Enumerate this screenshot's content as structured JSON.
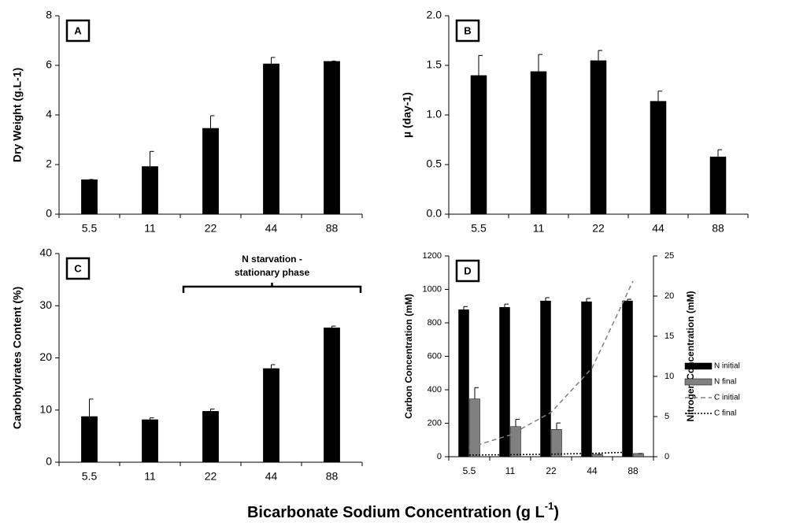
{
  "chart_data": [
    {
      "type": "bar",
      "panel": "A",
      "ylabel": "Dry Weight (g.L-1)",
      "categories": [
        "5.5",
        "11",
        "22",
        "44",
        "88"
      ],
      "values": [
        1.4,
        1.93,
        3.47,
        6.07,
        6.17
      ],
      "errors": [
        0,
        0.6,
        0.5,
        0.25,
        0
      ],
      "color": "#000000",
      "ylim": [
        0,
        8
      ],
      "yticks": [
        0,
        2,
        4,
        6,
        8
      ]
    },
    {
      "type": "bar",
      "panel": "B",
      "ylabel": "µ (day-1)",
      "categories": [
        "5.5",
        "11",
        "22",
        "44",
        "88"
      ],
      "values": [
        1.4,
        1.44,
        1.55,
        1.14,
        0.58
      ],
      "errors": [
        0.2,
        0.17,
        0.1,
        0.1,
        0.07
      ],
      "color": "#000000",
      "ylim": [
        0,
        2
      ],
      "yticks": [
        {
          "value": 0,
          "label": "0.0"
        },
        {
          "value": 0.5,
          "label": "0.5"
        },
        {
          "value": 1,
          "label": "1.0"
        },
        {
          "value": 1.5,
          "label": "1.5"
        },
        {
          "value": 2,
          "label": "2.0"
        }
      ]
    },
    {
      "type": "bar",
      "panel": "C",
      "ylabel": "Carbohydrates Content (%)",
      "categories": [
        "5.5",
        "11",
        "22",
        "44",
        "88"
      ],
      "values": [
        8.8,
        8.2,
        9.8,
        18.0,
        25.8
      ],
      "errors": [
        3.3,
        0.3,
        0.4,
        0.7,
        0.3
      ],
      "color": "#000000",
      "ylim": [
        0,
        40
      ],
      "yticks": [
        0,
        10,
        20,
        30,
        40
      ],
      "annotation": [
        "N starvation -",
        "stationary phase"
      ]
    },
    {
      "type": "bar",
      "panel": "D",
      "ylabel": "Carbon Concentration (mM)",
      "y2label": "Nitrogen Concentration (mM)",
      "categories": [
        "5.5",
        "11",
        "22",
        "44",
        "88"
      ],
      "series": [
        {
          "name": "N initial",
          "color": "#000000",
          "kind": "bar",
          "axis": "y2",
          "values": [
            18.3,
            18.6,
            19.4,
            19.3,
            19.4
          ],
          "errors": [
            0.4,
            0.4,
            0.4,
            0.4,
            0.2
          ]
        },
        {
          "name": "N final",
          "color": "#808080",
          "kind": "bar",
          "axis": "y2",
          "values": [
            7.2,
            3.75,
            3.4,
            0.3,
            0.4
          ],
          "errors": [
            1.4,
            0.9,
            0.8,
            0,
            0
          ]
        },
        {
          "name": "C initial",
          "color": "#808080",
          "kind": "line",
          "style": "dashed",
          "values": [
            55,
            130,
            265,
            530,
            1050
          ]
        },
        {
          "name": "C final",
          "color": "#000000",
          "kind": "line",
          "style": "dotted",
          "values": [
            10,
            12,
            15,
            20,
            28
          ]
        }
      ],
      "ylim": [
        0,
        1200
      ],
      "yticks": [
        0,
        200,
        400,
        600,
        800,
        1000,
        1200
      ],
      "y2lim": [
        0,
        25
      ],
      "y2ticks": [
        0,
        5,
        10,
        15,
        20,
        25
      ]
    }
  ],
  "xlabel": [
    "Bicarbonate Sodium Concentration (g L",
    "-1",
    ")"
  ]
}
